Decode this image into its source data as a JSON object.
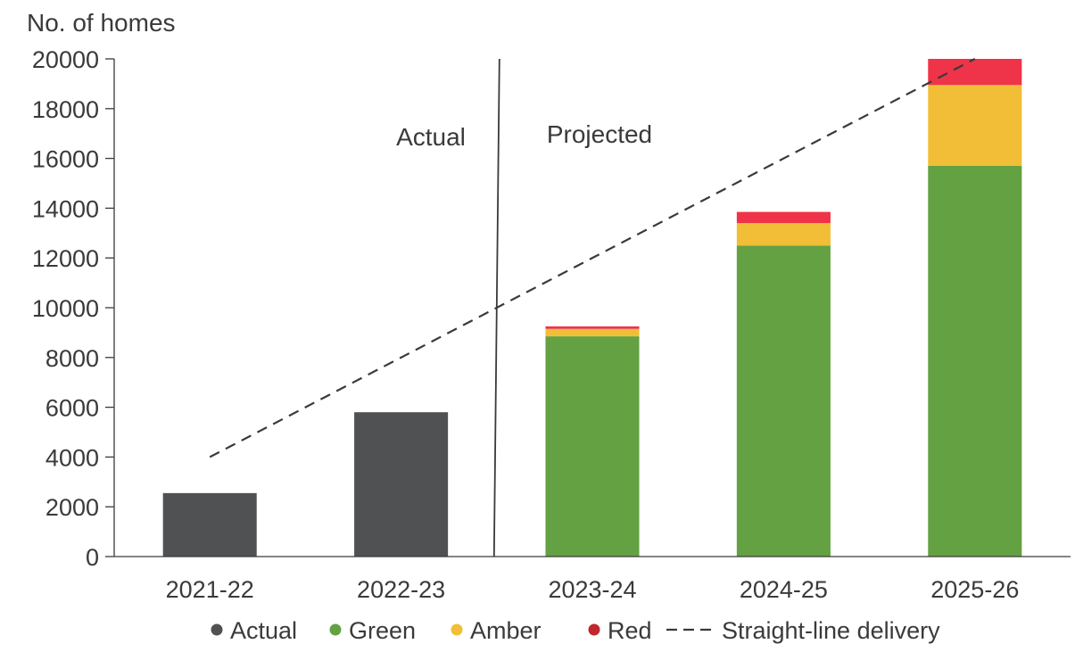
{
  "chart_data": {
    "type": "bar",
    "stacked": true,
    "ylabel": "No. of homes",
    "ylim": [
      0,
      20000
    ],
    "ytick_step": 2000,
    "yticks": [
      "0",
      "2000",
      "4000",
      "6000",
      "8000",
      "10000",
      "12000",
      "14000",
      "16000",
      "18000",
      "20000"
    ],
    "categories": [
      "2021-22",
      "2022-23",
      "2023-24",
      "2024-25",
      "2025-26"
    ],
    "series": [
      {
        "name": "Actual",
        "color": "#505153",
        "values": [
          2550,
          5800,
          0,
          0,
          0
        ]
      },
      {
        "name": "Green",
        "color": "#63a142",
        "values": [
          0,
          0,
          8850,
          12500,
          15700
        ]
      },
      {
        "name": "Amber",
        "color": "#f2be37",
        "values": [
          0,
          0,
          300,
          900,
          3250
        ]
      },
      {
        "name": "Red",
        "color": "#ef3349",
        "values": [
          0,
          0,
          100,
          450,
          1050
        ]
      }
    ],
    "straight_line": {
      "name": "Straight-line delivery",
      "color": "#3a3a3a",
      "from": {
        "category": "2021-22",
        "value": 4000
      },
      "to": {
        "category": "2025-26",
        "value": 20000
      }
    },
    "divider": {
      "after_category": "2022-23"
    },
    "annotations": {
      "left": "Actual",
      "right": "Projected"
    },
    "legend": {
      "placement": "bottom",
      "items": [
        {
          "label": "Actual",
          "color": "#505153",
          "marker": "dot"
        },
        {
          "label": "Green",
          "color": "#63a142",
          "marker": "dot"
        },
        {
          "label": "Amber",
          "color": "#f2be37",
          "marker": "dot"
        },
        {
          "label": "Red",
          "color": "#c1272d",
          "marker": "dot"
        },
        {
          "label": "Straight-line delivery",
          "color": "#3a3a3a",
          "marker": "dash"
        }
      ]
    }
  }
}
